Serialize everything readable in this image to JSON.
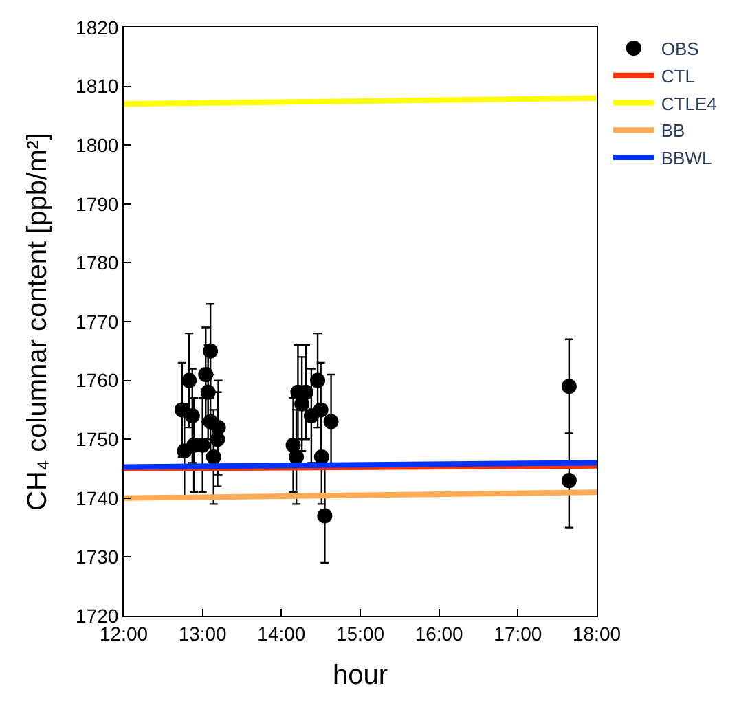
{
  "chart_data": {
    "type": "line",
    "xlabel": "hour",
    "ylabel": "CH₄ columnar content [ppb/m²]",
    "xlim": [
      12,
      18
    ],
    "xticks": [
      {
        "value": 12,
        "label": "12:00"
      },
      {
        "value": 13,
        "label": "13:00"
      },
      {
        "value": 14,
        "label": "14:00"
      },
      {
        "value": 15,
        "label": "15:00"
      },
      {
        "value": 16,
        "label": "16:00"
      },
      {
        "value": 17,
        "label": "17:00"
      },
      {
        "value": 18,
        "label": "18:00"
      }
    ],
    "ylim": [
      1720,
      1820
    ],
    "yticks": [
      1720,
      1730,
      1740,
      1750,
      1760,
      1770,
      1780,
      1790,
      1800,
      1810,
      1820
    ],
    "legend": "top right",
    "series": [
      {
        "name": "OBS",
        "type": "scatter",
        "marker": "circle",
        "color": "#000000",
        "x": [
          12.74,
          12.77,
          12.83,
          12.87,
          12.89,
          13.0,
          13.04,
          13.07,
          13.1,
          13.1,
          13.14,
          13.2,
          13.19,
          14.15,
          14.19,
          14.21,
          14.26,
          14.31,
          14.38,
          14.46,
          14.5,
          14.51,
          14.55,
          14.63,
          17.65,
          17.65
        ],
        "values": [
          1755,
          1748,
          1760,
          1754,
          1749,
          1749,
          1761,
          1758,
          1765,
          1753,
          1747,
          1752,
          1750,
          1749,
          1747,
          1758,
          1756,
          1758,
          1754,
          1760,
          1755,
          1747,
          1737,
          1753,
          1759,
          1743
        ],
        "errors": [
          8,
          8,
          8,
          8,
          8,
          8,
          8,
          8,
          8,
          8,
          8,
          8,
          8,
          8,
          8,
          8,
          8,
          8,
          8,
          8,
          8,
          8,
          8,
          8,
          8,
          8
        ]
      },
      {
        "name": "CTL",
        "color": "#ff3300",
        "x": [
          12,
          18
        ],
        "values": [
          1745,
          1745.5
        ]
      },
      {
        "name": "CTLE4",
        "color": "#ffff00",
        "x": [
          12,
          18
        ],
        "values": [
          1807,
          1808
        ]
      },
      {
        "name": "BB",
        "color": "#ffaa55",
        "x": [
          12,
          18
        ],
        "values": [
          1740,
          1741
        ]
      },
      {
        "name": "BBWL",
        "color": "#0033ff",
        "x": [
          12,
          18
        ],
        "values": [
          1745.3,
          1746
        ]
      }
    ]
  }
}
